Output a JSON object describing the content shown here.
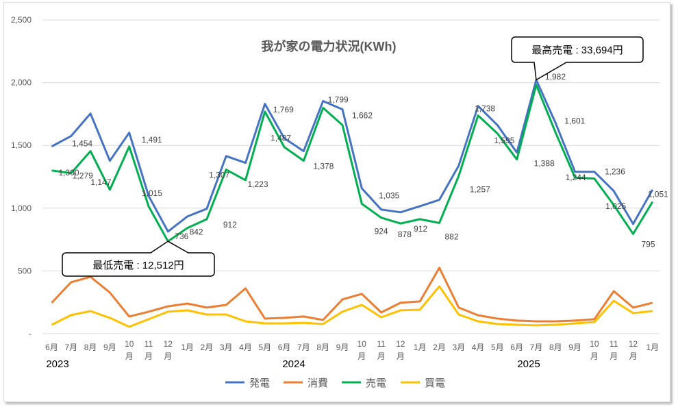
{
  "chart_data": {
    "type": "line",
    "title": "我が家の電力状況(KWh)",
    "xlabel": "",
    "ylabel": "",
    "ylim": [
      0,
      2500
    ],
    "yticks": [
      0,
      500,
      1000,
      1500,
      2000,
      2500
    ],
    "ytick_labels": [
      "-",
      "500",
      "1,000",
      "1,500",
      "2,000",
      "2,500"
    ],
    "grid": true,
    "legend_position": "bottom",
    "categories": [
      "6月",
      "7月",
      "8月",
      "9月",
      "10月",
      "11月",
      "12月",
      "1月",
      "2月",
      "3月",
      "4月",
      "5月",
      "6月",
      "7月",
      "8月",
      "9月",
      "10月",
      "11月",
      "12月",
      "1月",
      "2月",
      "3月",
      "4月",
      "5月",
      "6月",
      "7月",
      "8月",
      "9月",
      "10月",
      "11月",
      "12月",
      "1月"
    ],
    "year_groups": [
      {
        "label": "2023",
        "start_index": 0
      },
      {
        "label": "2024",
        "start_index": 7
      },
      {
        "label": "2025",
        "start_index": 19
      }
    ],
    "series": [
      {
        "name": "発電",
        "color": "#4472C4",
        "values": [
          1492,
          1574,
          1754,
          1377,
          1601,
          1098,
          814,
          934,
          995,
          1415,
          1361,
          1831,
          1557,
          1454,
          1853,
          1787,
          1158,
          989,
          967,
          1016,
          1066,
          1339,
          1814,
          1661,
          1443,
          2022,
          1678,
          1290,
          1290,
          1137,
          874,
          1148
        ]
      },
      {
        "name": "消費",
        "color": "#ED7D31",
        "values": [
          246,
          410,
          453,
          328,
          137,
          175,
          218,
          240,
          208,
          229,
          361,
          120,
          126,
          137,
          109,
          273,
          317,
          169,
          246,
          257,
          525,
          208,
          147,
          120,
          104,
          98,
          98,
          104,
          115,
          339,
          208,
          246
        ]
      },
      {
        "name": "売電",
        "color": "#00B050",
        "values": [
          1300,
          1279,
          1454,
          1147,
          1491,
          1015,
          736,
          842,
          912,
          1307,
          1223,
          1769,
          1487,
          1378,
          1799,
          1662,
          1035,
          924,
          878,
          912,
          882,
          1257,
          1738,
          1595,
          1388,
          1982,
          1601,
          1244,
          1236,
          1025,
          795,
          1051
        ]
      },
      {
        "name": "買電",
        "color": "#FFC000",
        "values": [
          71,
          148,
          180,
          126,
          55,
          115,
          175,
          186,
          153,
          153,
          98,
          82,
          82,
          87,
          77,
          175,
          230,
          131,
          186,
          191,
          377,
          153,
          98,
          77,
          71,
          66,
          71,
          82,
          93,
          262,
          164,
          180
        ]
      }
    ],
    "data_labels": {
      "series": "売電",
      "labels": [
        "1,300",
        "1,279",
        "1,454",
        "1,147",
        "1,491",
        "1,015",
        "736",
        "842",
        "912",
        "1,307",
        "1,223",
        "1,769",
        "1,487",
        "1,378",
        "1,799",
        "1,662",
        "1,035",
        "924",
        "878",
        "912",
        "882",
        "1,257",
        "1,738",
        "1,595",
        "1,388",
        "1,982",
        "1,601",
        "1,244",
        "1,236",
        "1,025",
        "795",
        "1,051"
      ]
    },
    "annotations": [
      {
        "text": "最低売電 : 12,512円",
        "series": "売電",
        "index": 6
      },
      {
        "text": "最高売電 : 33,694円",
        "series": "発電",
        "index": 25
      }
    ]
  }
}
